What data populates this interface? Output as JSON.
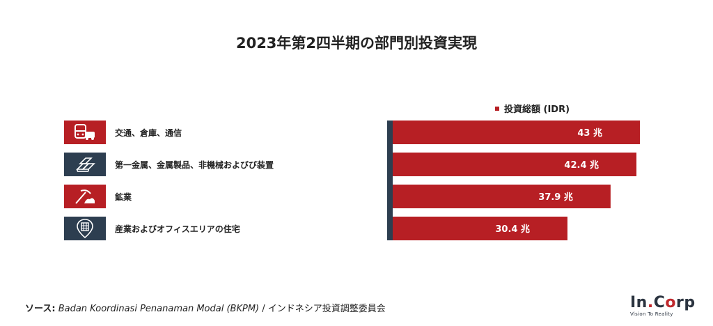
{
  "title": "2023年第2四半期の部門別投資実現",
  "legend": {
    "label": "投資総額 (IDR)"
  },
  "colors": {
    "bar": "#b71f24",
    "axis": "#2d3e50",
    "icon_red": "#b71f24",
    "icon_navy": "#2d3e50"
  },
  "categories": [
    {
      "label": "交通、倉庫、通信",
      "icon": "bus-car-icon",
      "icon_color": "#b71f24"
    },
    {
      "label": "第一金属、金属製品、非機械およびび装置",
      "icon": "metal-bars-icon",
      "icon_color": "#2d3e50"
    },
    {
      "label": "鉱業",
      "icon": "pickaxe-icon",
      "icon_color": "#b71f24"
    },
    {
      "label": "産業およびオフィスエリアの住宅",
      "icon": "building-pin-icon",
      "icon_color": "#2d3e50"
    }
  ],
  "chart_data": {
    "type": "bar",
    "orientation": "horizontal",
    "categories": [
      "交通、倉庫、通信",
      "第一金属、金属製品、非機械およびび装置",
      "鉱業",
      "産業およびオフィスエリアの住宅"
    ],
    "series": [
      {
        "name": "投資総額 (IDR)",
        "values": [
          43,
          42.4,
          37.9,
          30.4
        ]
      }
    ],
    "value_labels": [
      "43 兆",
      "42.4 兆",
      "37.9 兆",
      "30.4 兆"
    ],
    "unit": "兆",
    "xlim": [
      0,
      43
    ],
    "title": "2023年第2四半期の部門別投資実現",
    "legend_position": "top"
  },
  "source": {
    "label": "ソース:",
    "text_italic": "Badan Koordinasi Penanaman Modal (BKPM)",
    "separator": " / ",
    "text_jp": "インドネシア投資調整委員会"
  },
  "logo": {
    "main_a": "In",
    "main_b": "C",
    "main_c": "rp",
    "tagline": "Vision To Reality"
  }
}
